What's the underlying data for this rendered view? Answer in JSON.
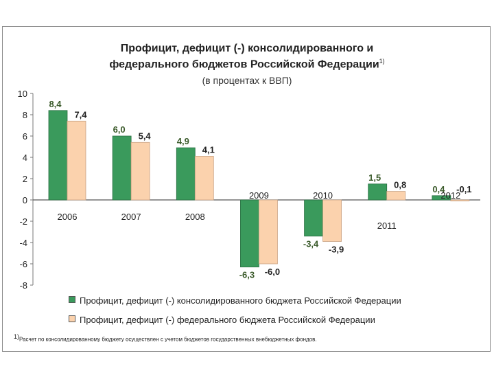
{
  "chart_data": {
    "type": "bar",
    "title_line1": "Профицит, дефицит (-) консолидированного и",
    "title_line2": "федерального бюджетов Российской Федерации",
    "title_sup": "1)",
    "subtitle": "(в процентах к ВВП)",
    "categories": [
      "2006",
      "2007",
      "2008",
      "2009",
      "2010",
      "2011",
      "2012"
    ],
    "series": [
      {
        "name": "Профицит, дефицит (-) консолидированного бюджета Российской Федерации",
        "values": [
          8.4,
          6.0,
          4.9,
          -6.3,
          -3.4,
          1.5,
          0.4
        ],
        "labels": [
          "8,4",
          "6,0",
          "4,9",
          "-6,3",
          "-3,4",
          "1,5",
          "0,4"
        ],
        "color": "#3a9a5c"
      },
      {
        "name": "Профицит, дефицит (-) федерального бюджета Российской Федерации",
        "values": [
          7.4,
          5.4,
          4.1,
          -6.0,
          -3.9,
          0.8,
          -0.1
        ],
        "labels": [
          "7,4",
          "5,4",
          "4,1",
          "-6,0",
          "-3,9",
          "0,8",
          "-0,1"
        ],
        "color": "#fbd2ad"
      }
    ],
    "yticks": [
      "10",
      "8",
      "6",
      "4",
      "2",
      "0",
      "-2",
      "-4",
      "-6",
      "-8"
    ],
    "ylim": [
      -8,
      10
    ],
    "legend_position": "bottom",
    "grid": false
  },
  "footnote": "Расчет по консолидированному бюджету осуществлен с учетом бюджетов государственных внебюджетных фондов."
}
